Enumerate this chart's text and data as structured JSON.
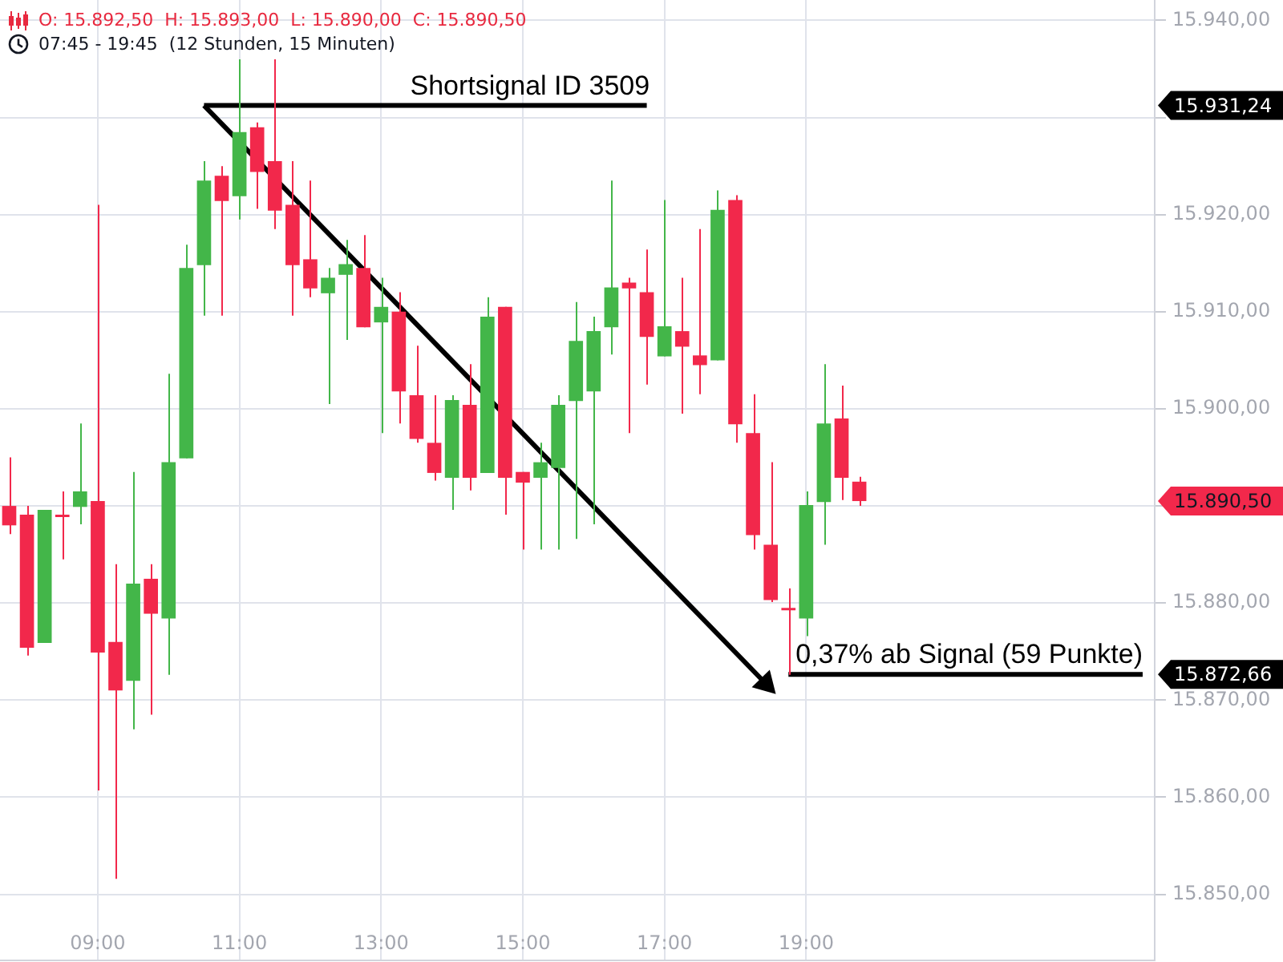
{
  "chart_data": {
    "type": "candlestick",
    "title": "O: 15.892,50  H: 15.893,00  L: 15.890,00  C: 15.890,50",
    "subtitle": "07:45 - 19:45  (12 Stunden, 15 Minuten)",
    "x": [
      7.75,
      8,
      8.25,
      8.5,
      8.75,
      9,
      9.25,
      9.5,
      9.75,
      10,
      10.25,
      10.5,
      10.75,
      11,
      11.25,
      11.5,
      11.75,
      12,
      12.25,
      12.5,
      12.75,
      13,
      13.25,
      13.5,
      13.75,
      14,
      14.25,
      14.5,
      14.75,
      15,
      15.25,
      15.5,
      15.75,
      16,
      16.25,
      16.5,
      16.75,
      17,
      17.25,
      17.5,
      17.75,
      18,
      18.25,
      18.5,
      18.75,
      19,
      19.25,
      19.5,
      19.75
    ],
    "ohlc": [
      [
        15890.0,
        15895.0,
        15887.1,
        15888.0
      ],
      [
        15889.1,
        15890.0,
        15874.6,
        15875.4
      ],
      [
        15875.9,
        15889.6,
        15875.9,
        15889.6
      ],
      [
        15889.1,
        15891.5,
        15884.5,
        15889.1
      ],
      [
        15889.9,
        15898.5,
        15888.1,
        15891.5
      ],
      [
        15890.5,
        15921.0,
        15860.7,
        15874.9
      ],
      [
        15876.0,
        15884.0,
        15851.6,
        15871.0
      ],
      [
        15872.0,
        15893.5,
        15867.0,
        15882.0
      ],
      [
        15882.5,
        15884.0,
        15868.5,
        15878.9
      ],
      [
        15878.4,
        15903.6,
        15872.6,
        15894.5
      ],
      [
        15894.9,
        15916.9,
        15894.9,
        15914.5
      ],
      [
        15914.8,
        15925.5,
        15909.6,
        15923.5
      ],
      [
        15924.0,
        15925.0,
        15909.6,
        15921.4
      ],
      [
        15921.9,
        15936.0,
        15919.5,
        15928.5
      ],
      [
        15929.0,
        15929.5,
        15920.6,
        15924.4
      ],
      [
        15925.5,
        15936.0,
        15918.5,
        15920.4
      ],
      [
        15921.0,
        15925.5,
        15909.6,
        15914.8
      ],
      [
        15915.4,
        15923.5,
        15911.5,
        15912.4
      ],
      [
        15911.9,
        15914.5,
        15900.5,
        15913.5
      ],
      [
        15913.8,
        15917.4,
        15907.1,
        15914.9
      ],
      [
        15914.5,
        15917.9,
        15908.4,
        15908.4
      ],
      [
        15908.9,
        15913.5,
        15897.5,
        15910.5
      ],
      [
        15910.0,
        15912.0,
        15898.5,
        15901.8
      ],
      [
        15901.4,
        15906.5,
        15896.5,
        15896.9
      ],
      [
        15896.5,
        15901.4,
        15892.6,
        15893.4
      ],
      [
        15892.9,
        15901.4,
        15889.6,
        15900.9
      ],
      [
        15900.4,
        15904.6,
        15891.6,
        15892.9
      ],
      [
        15893.4,
        15911.5,
        15893.4,
        15909.5
      ],
      [
        15910.5,
        15910.5,
        15889.1,
        15892.9
      ],
      [
        15893.5,
        15893.5,
        15885.5,
        15892.4
      ],
      [
        15892.9,
        15896.5,
        15885.5,
        15894.5
      ],
      [
        15893.9,
        15901.4,
        15885.5,
        15900.4
      ],
      [
        15900.8,
        15911.0,
        15886.6,
        15907.0
      ],
      [
        15901.8,
        15909.5,
        15888.1,
        15908.0
      ],
      [
        15908.4,
        15923.5,
        15905.6,
        15912.5
      ],
      [
        15913.0,
        15913.5,
        15897.5,
        15912.4
      ],
      [
        15912.0,
        15916.4,
        15902.5,
        15907.4
      ],
      [
        15905.4,
        15921.5,
        15905.4,
        15908.5
      ],
      [
        15908.0,
        15913.5,
        15899.5,
        15906.4
      ],
      [
        15905.5,
        15918.5,
        15901.5,
        15904.5
      ],
      [
        15905.0,
        15922.5,
        15905.0,
        15920.5
      ],
      [
        15921.5,
        15922.0,
        15896.5,
        15898.4
      ],
      [
        15897.5,
        15901.5,
        15885.5,
        15887.0
      ],
      [
        15886.0,
        15894.5,
        15880.1,
        15880.3
      ],
      [
        15879.5,
        15881.5,
        15872.6,
        15879.5
      ],
      [
        15878.4,
        15891.5,
        15876.6,
        15890.1
      ],
      [
        15890.4,
        15904.6,
        15886.0,
        15898.5
      ],
      [
        15899.0,
        15902.4,
        15890.6,
        15892.9
      ],
      [
        15892.5,
        15893.0,
        15890.0,
        15890.5
      ]
    ],
    "colors": [
      "#f2284b",
      "#f2284b",
      "#43b649",
      "#f2284b",
      "#43b649",
      "#f2284b",
      "#f2284b",
      "#43b649",
      "#f2284b",
      "#43b649",
      "#43b649",
      "#43b649",
      "#f2284b",
      "#43b649",
      "#f2284b",
      "#f2284b",
      "#f2284b",
      "#f2284b",
      "#43b649",
      "#43b649",
      "#f2284b",
      "#43b649",
      "#f2284b",
      "#f2284b",
      "#f2284b",
      "#43b649",
      "#f2284b",
      "#43b649",
      "#f2284b",
      "#f2284b",
      "#43b649",
      "#43b649",
      "#43b649",
      "#43b649",
      "#43b649",
      "#f2284b",
      "#f2284b",
      "#43b649",
      "#f2284b",
      "#f2284b",
      "#43b649",
      "#f2284b",
      "#f2284b",
      "#f2284b",
      "#f2284b",
      "#43b649",
      "#43b649",
      "#f2284b",
      "#f2284b"
    ],
    "series": [
      {
        "type": "line",
        "x": [
          10.5,
          16.75
        ],
        "values": [
          15931.24,
          15931.24
        ],
        "color": "#000000",
        "marker": "none"
      },
      {
        "type": "line",
        "x": [
          10.5,
          18.43
        ],
        "values": [
          15931.24,
          15871.7
        ],
        "color": "#000000",
        "marker": "triangle"
      },
      {
        "type": "line",
        "x": [
          18.75,
          23.75
        ],
        "values": [
          15872.66,
          15872.66
        ],
        "color": "#000000",
        "marker": "none"
      }
    ],
    "annotations": [
      {
        "text": "Shortsignal ID 3509",
        "x": 15.1,
        "y": 15931.24
      },
      {
        "text": "0,37% ab Signal (59 Punkte)",
        "x": 21.3,
        "y": 15872.66
      }
    ],
    "xlim": [
      7.62,
      23.92
    ],
    "ylim": [
      15843.2,
      15942.1
    ],
    "y2lim": [
      15843.2,
      15942.1
    ],
    "xticks": [
      {
        "value": 9,
        "label": "09:00"
      },
      {
        "value": 11,
        "label": "11:00"
      },
      {
        "value": 13,
        "label": "13:00"
      },
      {
        "value": 15,
        "label": "15:00"
      },
      {
        "value": 17,
        "label": "17:00"
      },
      {
        "value": 19,
        "label": "19:00"
      }
    ],
    "yticks": [
      {
        "value": 15850,
        "label": "15.850,00"
      },
      {
        "value": 15860,
        "label": "15.860,00"
      },
      {
        "value": 15870,
        "label": "15.870,00"
      },
      {
        "value": 15880,
        "label": "15.880,00"
      },
      {
        "value": 15890,
        "label": null
      },
      {
        "value": 15900,
        "label": "15.900,00"
      },
      {
        "value": 15910,
        "label": "15.910,00"
      },
      {
        "value": 15920,
        "label": "15.920,00"
      },
      {
        "value": 15930,
        "label": null
      },
      {
        "value": 15940,
        "label": "15.940,00"
      }
    ],
    "y2ticks": [
      {
        "value": 15931.24,
        "label": "15.931,24"
      },
      {
        "value": 15890.5,
        "label": "15.890,50"
      },
      {
        "value": 15872.66,
        "label": "15.872,66"
      }
    ],
    "grid": true
  }
}
